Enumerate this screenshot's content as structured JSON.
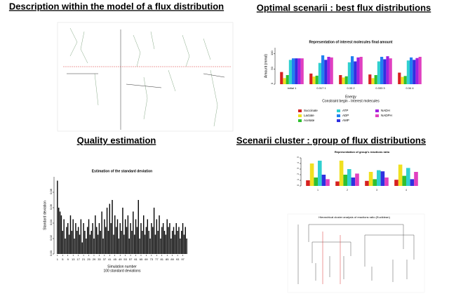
{
  "panels": [
    {
      "title": "Description within the model of a flux distribution"
    },
    {
      "title": "Optimal scenarii : best flux distributions",
      "chart": {
        "type": "bar",
        "title": "Representation of interest molecules final amount",
        "ylabel": "Amount (mmol)",
        "xlabel": "Energy",
        "note": "Constraint begin - Interest molecules",
        "categories": [
          "initial 1",
          "0.317 1",
          "0.33 2",
          "0.333 3",
          "0.34 4"
        ],
        "ylim": [
          0,
          120
        ],
        "yticks": [
          0,
          50,
          100
        ],
        "series": [
          {
            "name": "Succinate",
            "color": "#d62020",
            "values": [
              40,
              35,
              30,
              32,
              38
            ]
          },
          {
            "name": "Lactate",
            "color": "#f0e020",
            "values": [
              20,
              25,
              22,
              20,
              24
            ]
          },
          {
            "name": "Acetate",
            "color": "#30c030",
            "values": [
              30,
              28,
              26,
              30,
              27
            ]
          },
          {
            "name": "ATP",
            "color": "#30d0d0",
            "values": [
              80,
              70,
              72,
              75,
              78
            ]
          },
          {
            "name": "ADP",
            "color": "#2080f0",
            "values": [
              85,
              95,
              92,
              90,
              88
            ]
          },
          {
            "name": "AMP",
            "color": "#3030e0",
            "values": [
              85,
              80,
              75,
              82,
              80
            ]
          },
          {
            "name": "NADH",
            "color": "#a020e0",
            "values": [
              85,
              90,
              88,
              92,
              86
            ]
          },
          {
            "name": "NADPH",
            "color": "#e040c0",
            "values": [
              85,
              88,
              90,
              85,
              90
            ]
          }
        ]
      }
    },
    {
      "title": "Quality estimation",
      "chart": {
        "type": "bar",
        "title": "Estimation of the standard deviation",
        "ylabel": "Standard deviation",
        "xlabel": "Simulation number",
        "note": "100 standard deviations",
        "color": "#000000",
        "xlim": [
          0,
          101
        ],
        "xticks": [
          1,
          5,
          9,
          13,
          17,
          21,
          25,
          29,
          33,
          37,
          41,
          45,
          49,
          53,
          57,
          61,
          65,
          69,
          73,
          77,
          81,
          85,
          89,
          93,
          97
        ],
        "ylim": [
          0,
          0.1
        ],
        "yticks": [
          {
            "value": 0,
            "label": "0.00"
          },
          {
            "value": 0.02,
            "label": "0.02"
          },
          {
            "value": 0.04,
            "label": "0.04"
          },
          {
            "value": 0.06,
            "label": "0.06"
          },
          {
            "value": 0.08,
            "label": "0.08"
          }
        ],
        "x": [
          1,
          2,
          3,
          4,
          5,
          6,
          7,
          8,
          9,
          10,
          11,
          12,
          13,
          14,
          15,
          16,
          17,
          18,
          19,
          20,
          21,
          22,
          23,
          24,
          25,
          26,
          27,
          28,
          29,
          30,
          31,
          32,
          33,
          34,
          35,
          36,
          37,
          38,
          39,
          40,
          41,
          42,
          43,
          44,
          45,
          46,
          47,
          48,
          49,
          50,
          51,
          52,
          53,
          54,
          55,
          56,
          57,
          58,
          59,
          60,
          61,
          62,
          63,
          64,
          65,
          66,
          67,
          68,
          69,
          70,
          71,
          72,
          73,
          74,
          75,
          76,
          77,
          78,
          79,
          80,
          81,
          82,
          83,
          84,
          85,
          86,
          87,
          88,
          89,
          90,
          91,
          92,
          93,
          94,
          95,
          96,
          97,
          98,
          99,
          100
        ],
        "values": [
          0.095,
          0.06,
          0.055,
          0.05,
          0.03,
          0.045,
          0.02,
          0.035,
          0.04,
          0.025,
          0.05,
          0.03,
          0.045,
          0.02,
          0.04,
          0.03,
          0.035,
          0.025,
          0.045,
          0.015,
          0.04,
          0.03,
          0.02,
          0.035,
          0.045,
          0.025,
          0.03,
          0.04,
          0.02,
          0.05,
          0.035,
          0.025,
          0.04,
          0.03,
          0.055,
          0.02,
          0.045,
          0.035,
          0.06,
          0.03,
          0.065,
          0.04,
          0.07,
          0.025,
          0.05,
          0.035,
          0.045,
          0.02,
          0.04,
          0.03,
          0.06,
          0.025,
          0.045,
          0.035,
          0.05,
          0.02,
          0.04,
          0.03,
          0.055,
          0.025,
          0.045,
          0.035,
          0.07,
          0.02,
          0.04,
          0.03,
          0.05,
          0.025,
          0.035,
          0.045,
          0.03,
          0.02,
          0.04,
          0.035,
          0.06,
          0.025,
          0.045,
          0.03,
          0.05,
          0.02,
          0.035,
          0.04,
          0.03,
          0.025,
          0.045,
          0.035,
          0.04,
          0.02,
          0.03,
          0.035,
          0.025,
          0.04,
          0.03,
          0.035,
          0.02,
          0.03,
          0.04,
          0.025,
          0.035,
          0.02
        ]
      }
    },
    {
      "title": "Scenarii cluster : group of flux distributions",
      "chart": {
        "type": "bar",
        "title": "Representation of group's reactions ratio",
        "categories": [
          "1",
          "2",
          "3",
          "4"
        ],
        "ylim": [
          0,
          5
        ],
        "yticks": [
          0,
          1,
          2,
          3,
          4,
          5
        ],
        "series": [
          {
            "color": "#d62020",
            "values": [
              1.0,
              0.8,
              0.9,
              1.1
            ]
          },
          {
            "color": "#f0e020",
            "values": [
              4.0,
              4.5,
              2.5,
              3.8
            ]
          },
          {
            "color": "#30c030",
            "values": [
              1.5,
              2.0,
              1.2,
              1.8
            ]
          },
          {
            "color": "#30d0d0",
            "values": [
              4.5,
              3.0,
              2.8,
              3.2
            ]
          },
          {
            "color": "#3030e0",
            "values": [
              2.0,
              1.5,
              2.6,
              1.2
            ]
          },
          {
            "color": "#e040c0",
            "values": [
              1.2,
              2.2,
              1.5,
              2.5
            ]
          }
        ]
      },
      "subtitle": "Hierarchical cluster analysis of reactions ratio (Euclidean)"
    }
  ]
}
